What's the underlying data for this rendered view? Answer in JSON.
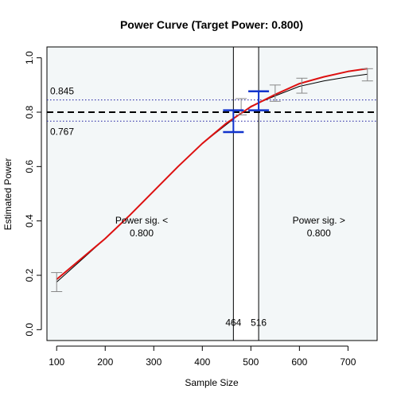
{
  "chart_data": {
    "type": "line",
    "title": "Power Curve (Target Power: 0.800)",
    "xlabel": "Sample Size",
    "ylabel": "Estimated Power",
    "xlim": [
      80,
      760
    ],
    "ylim": [
      -0.04,
      1.04
    ],
    "x_ticks": [
      "100",
      "200",
      "300",
      "400",
      "500",
      "600",
      "700"
    ],
    "y_ticks": [
      "0.0",
      "0.2",
      "0.4",
      "0.6",
      "0.8",
      "1.0"
    ],
    "grid": false,
    "colors": {
      "background_shade": "#f3f7f8",
      "observed_line": "#000000",
      "fitted_line": "#dd1111",
      "error_bars": "#888888",
      "crossing_bars": "#1133cc",
      "target_line": "#000000",
      "interval_lines": "#1a1aa0"
    },
    "target_power": 0.8,
    "target_label": "",
    "interval": {
      "lower": 0.767,
      "upper": 0.845,
      "lower_label": "0.767",
      "upper_label": "0.845"
    },
    "series": [
      {
        "x": [
          100,
          150,
          200,
          250,
          300,
          350,
          400,
          450,
          475,
          500,
          550,
          600,
          650,
          700,
          740
        ],
        "y": [
          0.175,
          0.255,
          0.335,
          0.42,
          0.51,
          0.6,
          0.685,
          0.755,
          0.79,
          0.822,
          0.86,
          0.895,
          0.915,
          0.93,
          0.94
        ]
      },
      {
        "x": [
          100,
          150,
          200,
          250,
          300,
          350,
          400,
          450,
          500,
          550,
          600,
          650,
          700,
          740
        ],
        "y": [
          0.185,
          0.26,
          0.335,
          0.42,
          0.51,
          0.6,
          0.685,
          0.76,
          0.82,
          0.865,
          0.905,
          0.93,
          0.95,
          0.96
        ]
      }
    ],
    "error_bars": [
      {
        "x": 100,
        "low": 0.14,
        "high": 0.21
      },
      {
        "x": 480,
        "low": 0.79,
        "high": 0.85
      },
      {
        "x": 550,
        "low": 0.84,
        "high": 0.9
      },
      {
        "x": 605,
        "low": 0.87,
        "high": 0.925
      },
      {
        "x": 740,
        "low": 0.915,
        "high": 0.96
      }
    ],
    "crossing_bars": [
      {
        "x": 464,
        "center": 0.807,
        "low": 0.727,
        "high": 0.807
      },
      {
        "x": 516,
        "center": 0.807,
        "low": 0.807,
        "high": 0.877
      }
    ],
    "vertical_lines": [
      {
        "x": 464,
        "label": "464"
      },
      {
        "x": 516,
        "label": "516"
      }
    ],
    "regions": [
      {
        "label_line1": "Power sig. <",
        "label_line2": "0.800",
        "x": 275,
        "y": 0.39
      },
      {
        "label_line1": "Power sig. >",
        "label_line2": "0.800",
        "x": 640,
        "y": 0.39
      }
    ]
  }
}
